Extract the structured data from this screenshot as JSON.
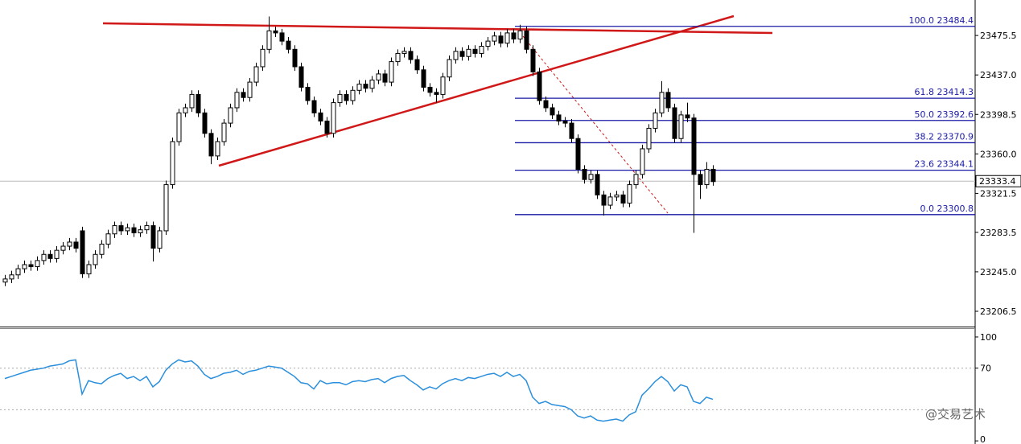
{
  "chart_data": {
    "type": "candlestick",
    "open": [
      23235,
      23238,
      23242,
      23248,
      23252,
      23250,
      23256,
      23262,
      23258,
      23266,
      23270,
      23274,
      23285,
      23243,
      23252,
      23262,
      23272,
      23282,
      23290,
      23285,
      23288,
      23283,
      23286,
      23290,
      23268,
      23285,
      23330,
      23372,
      23400,
      23405,
      23418,
      23400,
      23380,
      23358,
      23372,
      23390,
      23405,
      23420,
      23415,
      23430,
      23445,
      23462,
      23480,
      23478,
      23470,
      23462,
      23445,
      23425,
      23412,
      23400,
      23392,
      23380,
      23410,
      23418,
      23412,
      23422,
      23428,
      23424,
      23432,
      23438,
      23430,
      23450,
      23458,
      23460,
      23452,
      23442,
      23425,
      23420,
      23418,
      23435,
      23452,
      23460,
      23455,
      23462,
      23458,
      23465,
      23470,
      23475,
      23468,
      23478,
      23472,
      23480,
      23462,
      23440,
      23412,
      23405,
      23398,
      23392,
      23390,
      23375,
      23345,
      23335,
      23340,
      23320,
      23310,
      23318,
      23320,
      23312,
      23330,
      23340,
      23365,
      23385,
      23400,
      23420,
      23405,
      23375,
      23398,
      23395,
      23340,
      23330,
      23345
    ],
    "high": [
      23242,
      23246,
      23252,
      23256,
      23256,
      23260,
      23266,
      23266,
      23270,
      23274,
      23278,
      23278,
      23289,
      23256,
      23266,
      23276,
      23286,
      23294,
      23294,
      23292,
      23292,
      23290,
      23294,
      23294,
      23289,
      23334,
      23376,
      23404,
      23409,
      23422,
      23422,
      23404,
      23384,
      23376,
      23394,
      23409,
      23424,
      23424,
      23434,
      23449,
      23466,
      23494,
      23484,
      23482,
      23474,
      23466,
      23449,
      23429,
      23416,
      23404,
      23396,
      23414,
      23422,
      23422,
      23426,
      23432,
      23432,
      23436,
      23442,
      23442,
      23454,
      23462,
      23464,
      23464,
      23456,
      23446,
      23429,
      23424,
      23439,
      23456,
      23464,
      23464,
      23466,
      23466,
      23469,
      23474,
      23479,
      23479,
      23482,
      23482,
      23486,
      23484,
      23466,
      23444,
      23416,
      23409,
      23402,
      23396,
      23394,
      23379,
      23349,
      23344,
      23344,
      23324,
      23322,
      23324,
      23324,
      23334,
      23344,
      23369,
      23389,
      23404,
      23431,
      23424,
      23409,
      23402,
      23410,
      23399,
      23344,
      23352,
      23349
    ],
    "low": [
      23231,
      23234,
      23238,
      23244,
      23246,
      23246,
      23252,
      23254,
      23254,
      23262,
      23266,
      23264,
      23239,
      23239,
      23248,
      23258,
      23268,
      23278,
      23281,
      23281,
      23279,
      23279,
      23282,
      23255,
      23264,
      23281,
      23326,
      23368,
      23396,
      23401,
      23396,
      23376,
      23350,
      23354,
      23368,
      23386,
      23401,
      23411,
      23411,
      23426,
      23441,
      23458,
      23474,
      23466,
      23458,
      23441,
      23421,
      23408,
      23396,
      23388,
      23376,
      23376,
      23406,
      23408,
      23408,
      23418,
      23420,
      23420,
      23428,
      23426,
      23426,
      23446,
      23454,
      23448,
      23438,
      23421,
      23416,
      23410,
      23414,
      23431,
      23448,
      23451,
      23451,
      23454,
      23454,
      23461,
      23466,
      23464,
      23464,
      23468,
      23468,
      23458,
      23436,
      23408,
      23401,
      23394,
      23388,
      23386,
      23371,
      23341,
      23331,
      23331,
      23316,
      23300,
      23306,
      23314,
      23308,
      23308,
      23326,
      23336,
      23361,
      23381,
      23396,
      23401,
      23371,
      23371,
      23391,
      23283,
      23316,
      23326,
      23329
    ],
    "close": [
      23238,
      23242,
      23248,
      23252,
      23250,
      23256,
      23262,
      23258,
      23266,
      23270,
      23274,
      23268,
      23243,
      23252,
      23262,
      23272,
      23282,
      23290,
      23285,
      23288,
      23283,
      23286,
      23290,
      23268,
      23285,
      23330,
      23372,
      23400,
      23405,
      23418,
      23400,
      23380,
      23358,
      23372,
      23390,
      23405,
      23420,
      23415,
      23430,
      23445,
      23462,
      23480,
      23478,
      23470,
      23462,
      23445,
      23425,
      23412,
      23400,
      23392,
      23380,
      23410,
      23418,
      23412,
      23422,
      23428,
      23424,
      23432,
      23438,
      23430,
      23450,
      23458,
      23460,
      23452,
      23442,
      23425,
      23420,
      23418,
      23435,
      23452,
      23460,
      23455,
      23462,
      23458,
      23465,
      23470,
      23475,
      23468,
      23478,
      23472,
      23480,
      23462,
      23440,
      23412,
      23405,
      23398,
      23392,
      23390,
      23375,
      23345,
      23335,
      23340,
      23320,
      23310,
      23318,
      23320,
      23312,
      23330,
      23340,
      23365,
      23385,
      23400,
      23420,
      23405,
      23375,
      23398,
      23395,
      23340,
      23330,
      23345,
      23333
    ],
    "ylim": [
      23191.6,
      23510.1
    ],
    "yticks": [
      {
        "value": 23475.5,
        "label": "23475.5"
      },
      {
        "value": 23437,
        "label": "23437.0"
      },
      {
        "value": 23398.5,
        "label": "23398.5"
      },
      {
        "value": 23360,
        "label": "23360.0"
      },
      {
        "value": 23321.5,
        "label": "23321.5"
      },
      {
        "value": 23283.5,
        "label": "23283.5"
      },
      {
        "value": 23245,
        "label": "23245.0"
      },
      {
        "value": 23206.5,
        "label": "23206.5"
      }
    ],
    "current_price": 23333.4,
    "fib_levels": [
      {
        "value": 23484.4,
        "label": "100.0 23484.4"
      },
      {
        "value": 23414.3,
        "label": "61.8 23414.3"
      },
      {
        "value": 23392.6,
        "label": "50.0 23392.6"
      },
      {
        "value": 23370.9,
        "label": "38.2 23370.9"
      },
      {
        "value": 23344.1,
        "label": "23.6 23344.1"
      },
      {
        "value": 23300.8,
        "label": "0.0 23300.8"
      }
    ],
    "rsi": {
      "values": [
        60,
        62,
        64,
        66,
        68,
        69,
        70,
        72,
        73,
        74,
        77,
        78,
        45,
        58,
        56,
        55,
        60,
        63,
        65,
        60,
        62,
        58,
        62,
        52,
        57,
        68,
        74,
        78,
        76,
        77,
        72,
        64,
        60,
        62,
        65,
        66,
        68,
        64,
        67,
        68,
        70,
        72,
        71,
        70,
        66,
        62,
        56,
        55,
        50,
        58,
        55,
        56,
        56,
        54,
        57,
        58,
        57,
        59,
        60,
        56,
        60,
        62,
        63,
        58,
        54,
        49,
        52,
        50,
        55,
        58,
        60,
        58,
        61,
        60,
        62,
        64,
        65,
        62,
        66,
        62,
        64,
        58,
        42,
        36,
        38,
        35,
        34,
        33,
        30,
        24,
        22,
        24,
        20,
        19,
        20,
        21,
        19,
        25,
        28,
        44,
        50,
        57,
        62,
        57,
        48,
        54,
        52,
        38,
        36,
        42,
        40
      ],
      "color": "#2a8fdc",
      "ylim": [
        -3,
        107.7
      ],
      "yticks": [
        100,
        70,
        0
      ],
      "levels": [
        70,
        30
      ]
    },
    "watermark": "@交易艺术"
  }
}
